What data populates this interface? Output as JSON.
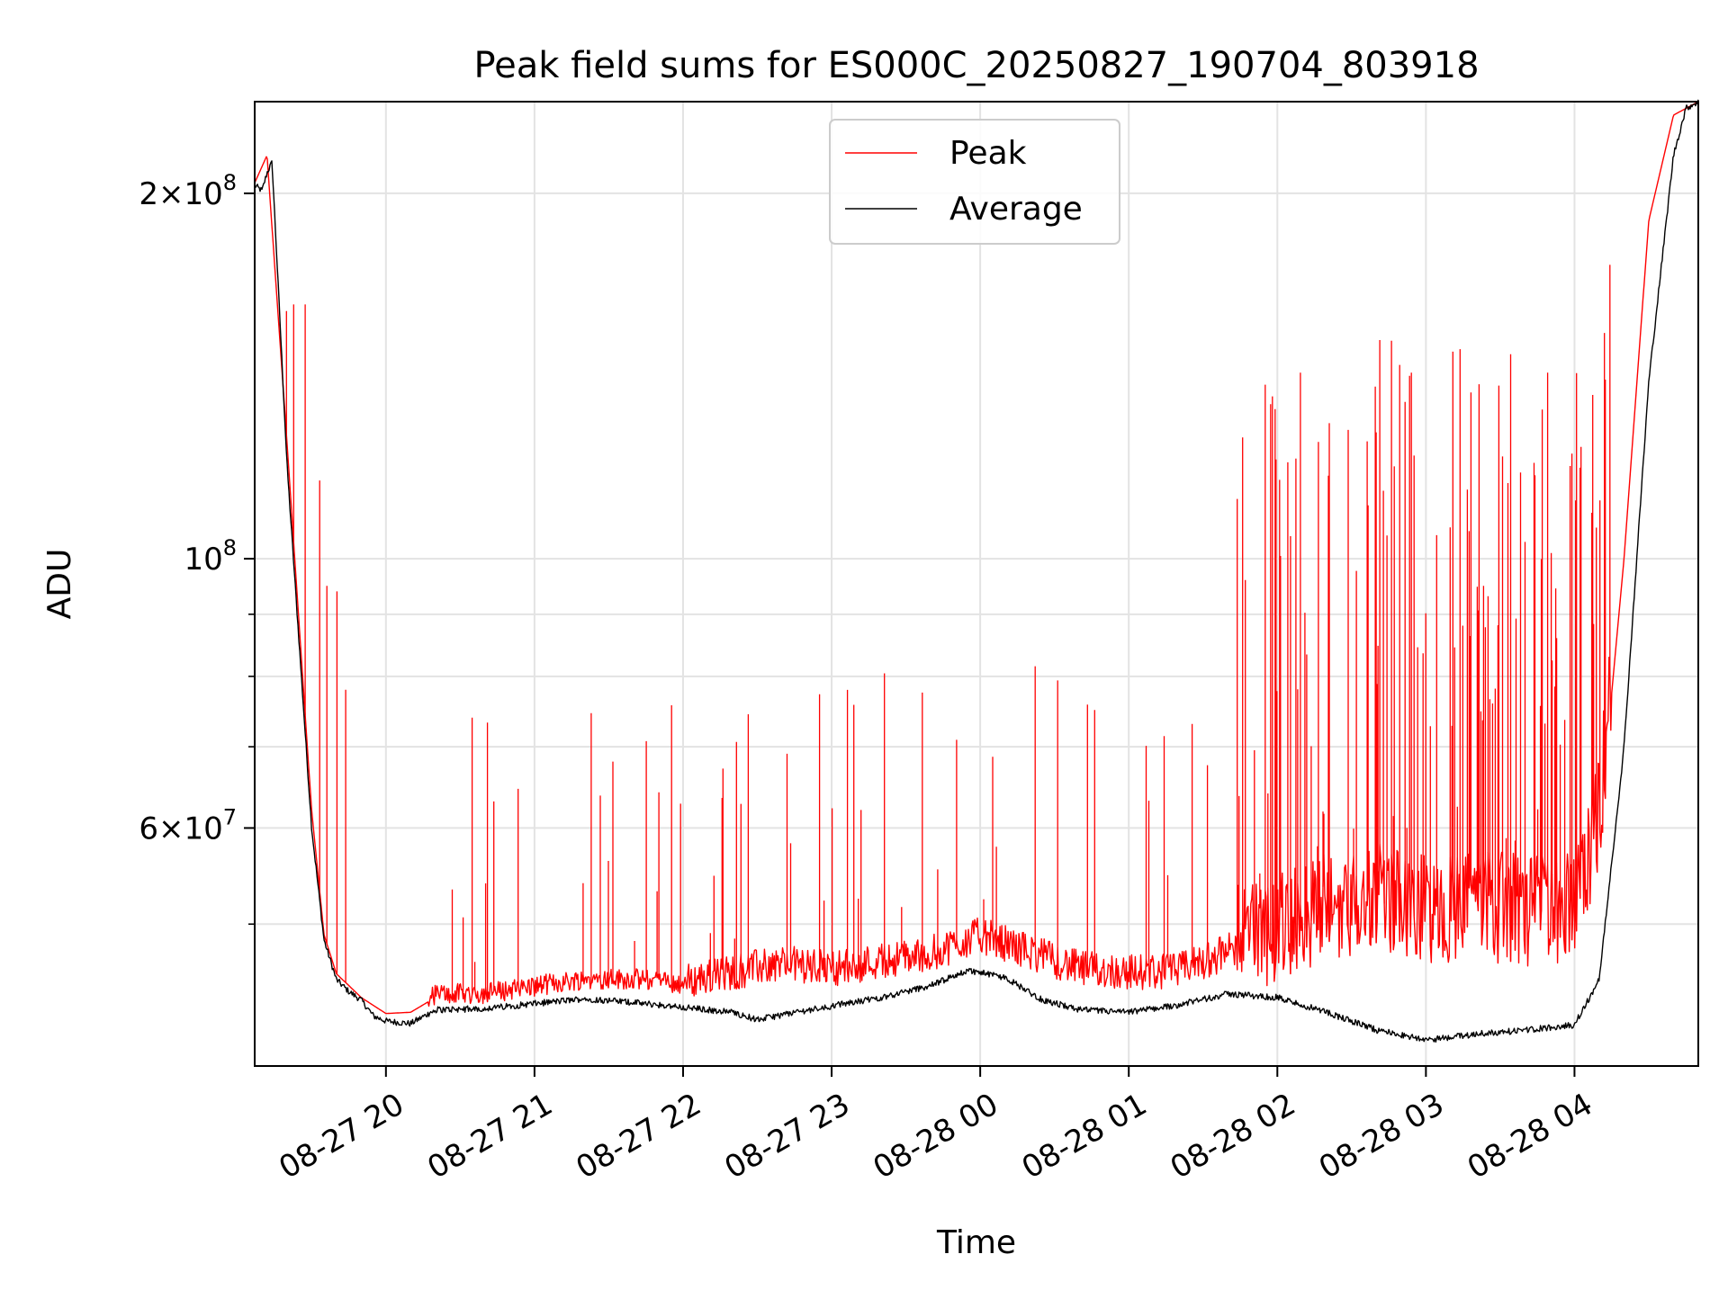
{
  "chart_data": {
    "type": "line",
    "title": "Peak field sums for ES000C_20250827_190704_803918",
    "xlabel": "Time",
    "ylabel": "ADU",
    "xlim": [
      "2025-08-27 19:07",
      "2025-08-28 04:50"
    ],
    "ylim": [
      38200000,
      238000000
    ],
    "yscale": "log",
    "grid": true,
    "legend_position": "upper center",
    "x_ticks": [
      {
        "value": "2025-08-27 20:00",
        "label": "08-27 20"
      },
      {
        "value": "2025-08-27 21:00",
        "label": "08-27 21"
      },
      {
        "value": "2025-08-27 22:00",
        "label": "08-27 22"
      },
      {
        "value": "2025-08-27 23:00",
        "label": "08-27 23"
      },
      {
        "value": "2025-08-28 00:00",
        "label": "08-28 00"
      },
      {
        "value": "2025-08-28 01:00",
        "label": "08-28 01"
      },
      {
        "value": "2025-08-28 02:00",
        "label": "08-28 02"
      },
      {
        "value": "2025-08-28 03:00",
        "label": "08-28 03"
      },
      {
        "value": "2025-08-28 04:00",
        "label": "08-28 04"
      }
    ],
    "y_ticks": [
      {
        "value": 60000000,
        "base": "6",
        "exp": "7"
      },
      {
        "value": 100000000,
        "base": "",
        "exp": "8"
      },
      {
        "value": 200000000,
        "base": "2",
        "exp": "8"
      }
    ],
    "y_minor_ticks": [
      50000000,
      70000000,
      80000000,
      90000000
    ],
    "series": [
      {
        "name": "Peak",
        "color": "#ff0000",
        "x": [
          "2025-08-27 19:07",
          "2025-08-27 19:12",
          "2025-08-27 19:15",
          "2025-08-27 19:20",
          "2025-08-27 19:25",
          "2025-08-27 19:30",
          "2025-08-27 19:35",
          "2025-08-27 19:40",
          "2025-08-27 19:45",
          "2025-08-27 19:50",
          "2025-08-27 20:00",
          "2025-08-27 20:10",
          "2025-08-27 20:20",
          "2025-08-27 20:40",
          "2025-08-27 21:00",
          "2025-08-27 21:20",
          "2025-08-27 21:40",
          "2025-08-27 22:00",
          "2025-08-27 22:20",
          "2025-08-27 22:40",
          "2025-08-27 23:00",
          "2025-08-27 23:20",
          "2025-08-27 23:40",
          "2025-08-28 00:00",
          "2025-08-28 00:20",
          "2025-08-28 00:40",
          "2025-08-28 01:00",
          "2025-08-28 01:20",
          "2025-08-28 01:40",
          "2025-08-28 02:00",
          "2025-08-28 02:20",
          "2025-08-28 02:40",
          "2025-08-28 03:00",
          "2025-08-28 03:20",
          "2025-08-28 03:40",
          "2025-08-28 04:00",
          "2025-08-28 04:10",
          "2025-08-28 04:20",
          "2025-08-28 04:30",
          "2025-08-28 04:40",
          "2025-08-28 04:50"
        ],
        "y": [
          204000000,
          215000000,
          175000000,
          125000000,
          88000000,
          62000000,
          49000000,
          45500000,
          44500000,
          43500000,
          42200000,
          42300000,
          43500000,
          43600000,
          44200000,
          44800000,
          44800000,
          44400000,
          45200000,
          46000000,
          45500000,
          46200000,
          46800000,
          48500000,
          47000000,
          45500000,
          45200000,
          45300000,
          47000000,
          48500000,
          50000000,
          51000000,
          50000000,
          50500000,
          50000000,
          50000000,
          60000000,
          100000000,
          190000000,
          232000000,
          238000000
        ]
      },
      {
        "name": "Average",
        "color": "#000000",
        "x": [
          "2025-08-27 19:07",
          "2025-08-27 19:10",
          "2025-08-27 19:12",
          "2025-08-27 19:14",
          "2025-08-27 19:17",
          "2025-08-27 19:20",
          "2025-08-27 19:25",
          "2025-08-27 19:30",
          "2025-08-27 19:35",
          "2025-08-27 19:40",
          "2025-08-27 19:45",
          "2025-08-27 19:50",
          "2025-08-27 19:55",
          "2025-08-27 20:00",
          "2025-08-27 20:10",
          "2025-08-27 20:20",
          "2025-08-27 20:40",
          "2025-08-27 21:00",
          "2025-08-27 21:20",
          "2025-08-27 21:40",
          "2025-08-27 22:00",
          "2025-08-27 22:20",
          "2025-08-27 22:30",
          "2025-08-27 22:45",
          "2025-08-27 23:00",
          "2025-08-27 23:20",
          "2025-08-27 23:40",
          "2025-08-27 23:55",
          "2025-08-28 00:10",
          "2025-08-28 00:25",
          "2025-08-28 00:40",
          "2025-08-28 01:00",
          "2025-08-28 01:20",
          "2025-08-28 01:40",
          "2025-08-28 02:00",
          "2025-08-28 02:20",
          "2025-08-28 02:40",
          "2025-08-28 03:00",
          "2025-08-28 03:20",
          "2025-08-28 03:40",
          "2025-08-28 04:00",
          "2025-08-28 04:10",
          "2025-08-28 04:20",
          "2025-08-28 04:30",
          "2025-08-28 04:40",
          "2025-08-28 04:45",
          "2025-08-28 04:50"
        ],
        "y": [
          203000000,
          201000000,
          208000000,
          212000000,
          160000000,
          120000000,
          85000000,
          60000000,
          48500000,
          45000000,
          44000000,
          43300000,
          42000000,
          41600000,
          41400000,
          42500000,
          42600000,
          43000000,
          43400000,
          43100000,
          42700000,
          42300000,
          41700000,
          42300000,
          42800000,
          43500000,
          44500000,
          45800000,
          45200000,
          43300000,
          42500000,
          42300000,
          42900000,
          43800000,
          43500000,
          42300000,
          40900000,
          40100000,
          40600000,
          40900000,
          41300000,
          45000000,
          70000000,
          140000000,
          215000000,
          235000000,
          238000000
        ]
      }
    ],
    "annotations": []
  }
}
